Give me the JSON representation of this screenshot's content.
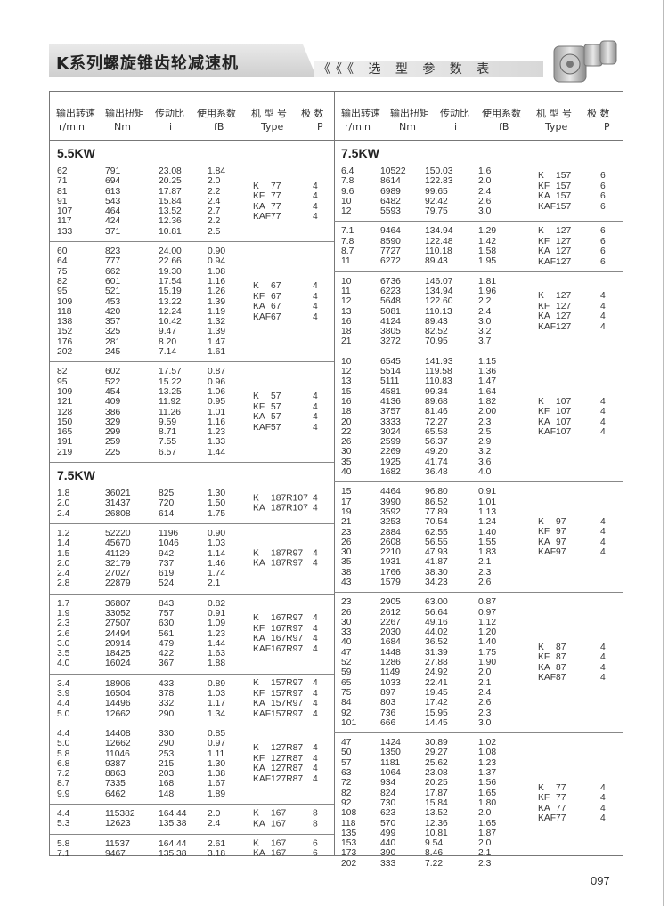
{
  "header": {
    "title": "K系列螺旋锥齿轮减速机",
    "subtitle_arrows": "《《《",
    "subtitle": "选 型 参 数 表",
    "product_image": "gear-reducer-photo"
  },
  "columns_header": {
    "cn": [
      "输出转速",
      "输出扭矩",
      "传动比",
      "使用系数",
      "机 型 号",
      "极  数"
    ],
    "en": [
      "r/min",
      "Nm",
      "i",
      "fB",
      "Type",
      "P"
    ]
  },
  "left": [
    {
      "title": "5.5KW"
    },
    {
      "rows": [
        [
          "62",
          "791",
          "23.08",
          "1.84"
        ],
        [
          "71",
          "694",
          "20.25",
          "2.0"
        ],
        [
          "81",
          "613",
          "17.87",
          "2.2"
        ],
        [
          "91",
          "543",
          "15.84",
          "2.4"
        ],
        [
          "107",
          "464",
          "13.52",
          "2.7"
        ],
        [
          "117",
          "424",
          "12.36",
          "2.2"
        ],
        [
          "133",
          "371",
          "10.81",
          "2.5"
        ]
      ],
      "types": [
        [
          "K",
          "77"
        ],
        [
          "KF",
          "77"
        ],
        [
          "KA",
          "77"
        ],
        [
          "KAF",
          "77"
        ]
      ],
      "poles": [
        "4",
        "4",
        "4",
        "4"
      ]
    },
    {
      "rows": [
        [
          "60",
          "823",
          "24.00",
          "0.90"
        ],
        [
          "64",
          "777",
          "22.66",
          "0.94"
        ],
        [
          "75",
          "662",
          "19.30",
          "1.08"
        ],
        [
          "82",
          "601",
          "17.54",
          "1.16"
        ],
        [
          "95",
          "521",
          "15.19",
          "1.26"
        ],
        [
          "109",
          "453",
          "13.22",
          "1.39"
        ],
        [
          "118",
          "420",
          "12.24",
          "1.19"
        ],
        [
          "138",
          "357",
          "10.42",
          "1.32"
        ],
        [
          "152",
          "325",
          "9.47",
          "1.39"
        ],
        [
          "176",
          "281",
          "8.20",
          "1.47"
        ],
        [
          "202",
          "245",
          "7.14",
          "1.61"
        ]
      ],
      "types": [
        [
          "K",
          "67"
        ],
        [
          "KF",
          "67"
        ],
        [
          "KA",
          "67"
        ],
        [
          "KAF",
          "67"
        ]
      ],
      "poles": [
        "4",
        "4",
        "4",
        "4"
      ]
    },
    {
      "rows": [
        [
          "82",
          "602",
          "17.57",
          "0.87"
        ],
        [
          "95",
          "522",
          "15.22",
          "0.96"
        ],
        [
          "109",
          "454",
          "13.25",
          "1.06"
        ],
        [
          "121",
          "409",
          "11.92",
          "0.95"
        ],
        [
          "128",
          "386",
          "11.26",
          "1.01"
        ],
        [
          "150",
          "329",
          "9.59",
          "1.16"
        ],
        [
          "165",
          "299",
          "8.71",
          "1.23"
        ],
        [
          "191",
          "259",
          "7.55",
          "1.33"
        ],
        [
          "219",
          "225",
          "6.57",
          "1.44"
        ]
      ],
      "types": [
        [
          "K",
          "57"
        ],
        [
          "KF",
          "57"
        ],
        [
          "KA",
          "57"
        ],
        [
          "KAF",
          "57"
        ]
      ],
      "poles": [
        "4",
        "4",
        "4",
        "4"
      ]
    },
    {
      "title": "7.5KW"
    },
    {
      "rows": [
        [
          "1.8",
          "36021",
          "825",
          "1.30"
        ],
        [
          "2.0",
          "31437",
          "720",
          "1.50"
        ],
        [
          "2.4",
          "26808",
          "614",
          "1.75"
        ]
      ],
      "types": [
        [
          "K ",
          "187R107"
        ],
        [
          "KA",
          "187R107"
        ]
      ],
      "poles": [
        "4",
        "4"
      ]
    },
    {
      "rows": [
        [
          "1.2",
          "52220",
          "1196",
          "0.90"
        ],
        [
          "1.4",
          "45670",
          "1046",
          "1.03"
        ],
        [
          "1.5",
          "41129",
          "942",
          "1.14"
        ],
        [
          "2.0",
          "32179",
          "737",
          "1.46"
        ],
        [
          "2.4",
          "27027",
          "619",
          "1.74"
        ],
        [
          "2.8",
          "22879",
          "524",
          "2.1"
        ]
      ],
      "types": [
        [
          "K ",
          "187R97"
        ],
        [
          "KA",
          "187R97"
        ]
      ],
      "poles": [
        "4",
        "4"
      ]
    },
    {
      "rows": [
        [
          "1.7",
          "36807",
          "843",
          "0.82"
        ],
        [
          "1.9",
          "33052",
          "757",
          "0.91"
        ],
        [
          "2.3",
          "27507",
          "630",
          "1.09"
        ],
        [
          "2.6",
          "24494",
          "561",
          "1.23"
        ],
        [
          "3.0",
          "20914",
          "479",
          "1.44"
        ],
        [
          "3.5",
          "18425",
          "422",
          "1.63"
        ],
        [
          "4.0",
          "16024",
          "367",
          "1.88"
        ]
      ],
      "types": [
        [
          "K",
          "167R97"
        ],
        [
          "KF",
          "167R97"
        ],
        [
          "KA",
          "167R97"
        ],
        [
          "KAF",
          "167R97"
        ]
      ],
      "poles": [
        "4",
        "4",
        "4",
        "4"
      ]
    },
    {
      "rows": [
        [
          "3.4",
          "18906",
          "433",
          "0.89"
        ],
        [
          "3.9",
          "16504",
          "378",
          "1.03"
        ],
        [
          "4.4",
          "14496",
          "332",
          "1.17"
        ],
        [
          "5.0",
          "12662",
          "290",
          "1.34"
        ]
      ],
      "types": [
        [
          "K",
          "157R97"
        ],
        [
          "KF",
          "157R97"
        ],
        [
          "KA",
          "157R97"
        ],
        [
          "KAF",
          "157R97"
        ]
      ],
      "poles": [
        "4",
        "4",
        "4",
        "4"
      ]
    },
    {
      "rows": [
        [
          "4.4",
          "14408",
          "330",
          "0.85"
        ],
        [
          "5.0",
          "12662",
          "290",
          "0.97"
        ],
        [
          "5.8",
          "11046",
          "253",
          "1.11"
        ],
        [
          "6.8",
          "9387",
          "215",
          "1.30"
        ],
        [
          "7.2",
          "8863",
          "203",
          "1.38"
        ],
        [
          "8.7",
          "7335",
          "168",
          "1.67"
        ],
        [
          "9.9",
          "6462",
          "148",
          "1.89"
        ]
      ],
      "types": [
        [
          "K",
          "127R87"
        ],
        [
          "KF",
          "127R87"
        ],
        [
          "KA",
          "127R87"
        ],
        [
          "KAF",
          "127R87"
        ]
      ],
      "poles": [
        "4",
        "4",
        "4",
        "4"
      ]
    },
    {
      "rows": [
        [
          "4.4",
          "115382",
          "164.44",
          "2.0"
        ],
        [
          "5.3",
          "12623",
          "135.38",
          "2.4"
        ]
      ],
      "types": [
        [
          "K",
          "167"
        ],
        [
          "KA",
          "167"
        ]
      ],
      "poles": [
        "8",
        "8"
      ]
    },
    {
      "rows": [
        [
          "5.8",
          "11537",
          "164.44",
          "2.61"
        ],
        [
          "7.1",
          "9467",
          "135.38",
          "3.18"
        ]
      ],
      "types": [
        [
          "K",
          "167"
        ],
        [
          "KA",
          "167"
        ]
      ],
      "poles": [
        "6",
        "6"
      ]
    }
  ],
  "right": [
    {
      "title": "7.5KW"
    },
    {
      "rows": [
        [
          "6.4",
          "10522",
          "150.03",
          "1.6"
        ],
        [
          "7.8",
          "8614",
          "122.83",
          "2.0"
        ],
        [
          "9.6",
          "6989",
          "99.65",
          "2.4"
        ],
        [
          "10",
          "6482",
          "92.42",
          "2.6"
        ],
        [
          "12",
          "5593",
          "79.75",
          "3.0"
        ]
      ],
      "types": [
        [
          "K",
          "157"
        ],
        [
          "KF",
          "157"
        ],
        [
          "KA",
          "157"
        ],
        [
          "KAF",
          "157"
        ]
      ],
      "poles": [
        "6",
        "6",
        "6",
        "6"
      ]
    },
    {
      "rows": [
        [
          "7.1",
          "9464",
          "134.94",
          "1.29"
        ],
        [
          "7.8",
          "8590",
          "122.48",
          "1.42"
        ],
        [
          "8.7",
          "7727",
          "110.18",
          "1.58"
        ],
        [
          "11",
          "6272",
          "89.43",
          "1.95"
        ]
      ],
      "types": [
        [
          "K",
          "127"
        ],
        [
          "KF",
          "127"
        ],
        [
          "KA",
          "127"
        ],
        [
          "KAF",
          "127"
        ]
      ],
      "poles": [
        "6",
        "6",
        "6",
        "6"
      ]
    },
    {
      "rows": [
        [
          "10",
          "6736",
          "146.07",
          "1.81"
        ],
        [
          "11",
          "6223",
          "134.94",
          "1.96"
        ],
        [
          "12",
          "5648",
          "122.60",
          "2.2"
        ],
        [
          "13",
          "5081",
          "110.13",
          "2.4"
        ],
        [
          "16",
          "4124",
          "89.43",
          "3.0"
        ],
        [
          "18",
          "3805",
          "82.52",
          "3.2"
        ],
        [
          "21",
          "3272",
          "70.95",
          "3.7"
        ]
      ],
      "types": [
        [
          "K",
          "127"
        ],
        [
          "KF",
          "127"
        ],
        [
          "KA",
          "127"
        ],
        [
          "KAF",
          "127"
        ]
      ],
      "poles": [
        "4",
        "4",
        "4",
        "4"
      ]
    },
    {
      "rows": [
        [
          "10",
          "6545",
          "141.93",
          "1.15"
        ],
        [
          "12",
          "5514",
          "119.58",
          "1.36"
        ],
        [
          "13",
          "5111",
          "110.83",
          "1.47"
        ],
        [
          "15",
          "4581",
          "99.34",
          "1.64"
        ],
        [
          "16",
          "4136",
          "89.68",
          "1.82"
        ],
        [
          "18",
          "3757",
          "81.46",
          "2.00"
        ],
        [
          "20",
          "3333",
          "72.27",
          "2.3"
        ],
        [
          "22",
          "3024",
          "65.58",
          "2.5"
        ],
        [
          "26",
          "2599",
          "56.37",
          "2.9"
        ],
        [
          "30",
          "2269",
          "49.20",
          "3.2"
        ],
        [
          "35",
          "1925",
          "41.74",
          "3.6"
        ],
        [
          "40",
          "1682",
          "36.48",
          "4.0"
        ]
      ],
      "types": [
        [
          "K",
          "107"
        ],
        [
          "KF",
          "107"
        ],
        [
          "KA",
          "107"
        ],
        [
          "KAF",
          "107"
        ]
      ],
      "poles": [
        "4",
        "4",
        "4",
        "4"
      ]
    },
    {
      "rows": [
        [
          "15",
          "4464",
          "96.80",
          "0.91"
        ],
        [
          "17",
          "3990",
          "86.52",
          "1.01"
        ],
        [
          "19",
          "3592",
          "77.89",
          "1.13"
        ],
        [
          "21",
          "3253",
          "70.54",
          "1.24"
        ],
        [
          "23",
          "2884",
          "62.55",
          "1.40"
        ],
        [
          "26",
          "2608",
          "56.55",
          "1.55"
        ],
        [
          "30",
          "2210",
          "47.93",
          "1.83"
        ],
        [
          "35",
          "1931",
          "41.87",
          "2.1"
        ],
        [
          "38",
          "1766",
          "38.30",
          "2.3"
        ],
        [
          "43",
          "1579",
          "34.23",
          "2.6"
        ]
      ],
      "types": [
        [
          "K",
          "97"
        ],
        [
          "KF",
          "97"
        ],
        [
          "KA",
          "97"
        ],
        [
          "KAF",
          "97"
        ]
      ],
      "poles": [
        "4",
        "4",
        "4",
        "4"
      ]
    },
    {
      "rows": [
        [
          "23",
          "2905",
          "63.00",
          "0.87"
        ],
        [
          "26",
          "2612",
          "56.64",
          "0.97"
        ],
        [
          "30",
          "2267",
          "49.16",
          "1.12"
        ],
        [
          "33",
          "2030",
          "44.02",
          "1.20"
        ],
        [
          "40",
          "1684",
          "36.52",
          "1.40"
        ],
        [
          "47",
          "1448",
          "31.39",
          "1.75"
        ],
        [
          "52",
          "1286",
          "27.88",
          "1.90"
        ],
        [
          "59",
          "1149",
          "24.92",
          "2.0"
        ],
        [
          "65",
          "1033",
          "22.41",
          "2.1"
        ],
        [
          "75",
          "897",
          "19.45",
          "2.4"
        ],
        [
          "84",
          "803",
          "17.42",
          "2.6"
        ],
        [
          "92",
          "736",
          "15.95",
          "2.3"
        ],
        [
          "101",
          "666",
          "14.45",
          "3.0"
        ]
      ],
      "types": [
        [
          "K",
          "87"
        ],
        [
          "KF",
          "87"
        ],
        [
          "KA",
          "87"
        ],
        [
          "KAF",
          "87"
        ]
      ],
      "poles": [
        "4",
        "4",
        "4",
        "4"
      ]
    },
    {
      "rows": [
        [
          "47",
          "1424",
          "30.89",
          "1.02"
        ],
        [
          "50",
          "1350",
          "29.27",
          "1.08"
        ],
        [
          "57",
          "1181",
          "25.62",
          "1.23"
        ],
        [
          "63",
          "1064",
          "23.08",
          "1.37"
        ],
        [
          "72",
          "934",
          "20.25",
          "1.56"
        ],
        [
          "82",
          "824",
          "17.87",
          "1.65"
        ],
        [
          "92",
          "730",
          "15.84",
          "1.80"
        ],
        [
          "108",
          "623",
          "13.52",
          "2.0"
        ],
        [
          "118",
          "570",
          "12.36",
          "1.65"
        ],
        [
          "135",
          "499",
          "10.81",
          "1.87"
        ],
        [
          "153",
          "440",
          "9.54",
          "2.0"
        ],
        [
          "173",
          "390",
          "8.46",
          "2.1"
        ],
        [
          "202",
          "333",
          "7.22",
          "2.3"
        ]
      ],
      "types": [
        [
          "K",
          "77"
        ],
        [
          "KF",
          "77"
        ],
        [
          "KA",
          "77"
        ],
        [
          "KAF",
          "77"
        ]
      ],
      "poles": [
        "4",
        "4",
        "4",
        "4"
      ]
    }
  ],
  "page_number": "097"
}
